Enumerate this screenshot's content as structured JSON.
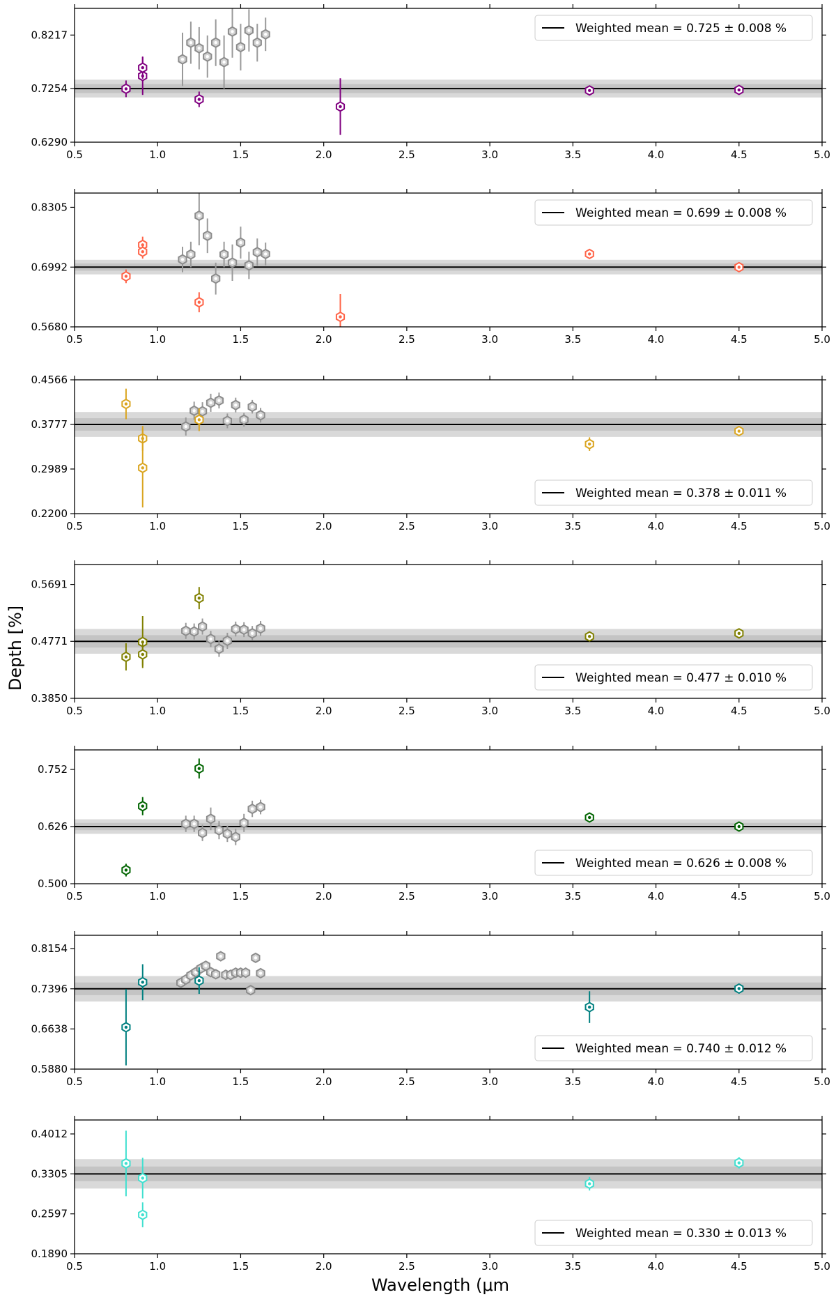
{
  "figure": {
    "ylabel": "Depth [%]",
    "xlabel": "Wavelength (μm"
  },
  "chart_data": [
    {
      "type": "scatter",
      "xlim": [
        0.5,
        5.0
      ],
      "xticks": [
        "0.5",
        "1.0",
        "1.5",
        "2.0",
        "2.5",
        "3.0",
        "3.5",
        "4.0",
        "4.5",
        "5.0"
      ],
      "ylim": [
        0.629,
        0.8697
      ],
      "yticks": [
        "0.6290",
        "0.7254",
        "0.8217"
      ],
      "mean": 0.7254,
      "band_inner": 0.008,
      "band_outer": 0.016,
      "legend": "Weighted mean = 0.725 ± 0.008 %",
      "legend_position": "top-right",
      "color": "#800080",
      "series": [
        {
          "x": [
            0.81,
            0.91,
            0.91,
            1.25,
            2.1,
            3.6,
            4.5
          ],
          "y": [
            0.725,
            0.748,
            0.763,
            0.706,
            0.693,
            0.722,
            0.723
          ],
          "err": [
            0.015,
            0.034,
            0.02,
            0.014,
            0.051,
            0.005,
            0.005
          ]
        },
        {
          "x": [
            1.15,
            1.2,
            1.25,
            1.3,
            1.35,
            1.4,
            1.45,
            1.5,
            1.55,
            1.6,
            1.65
          ],
          "y": [
            0.778,
            0.808,
            0.798,
            0.783,
            0.808,
            0.773,
            0.828,
            0.8,
            0.83,
            0.808,
            0.823
          ],
          "err": [
            0.048,
            0.038,
            0.038,
            0.038,
            0.042,
            0.048,
            0.047,
            0.042,
            0.038,
            0.034,
            0.03
          ]
        }
      ]
    },
    {
      "type": "scatter",
      "xlim": [
        0.5,
        5.0
      ],
      "xticks": [
        "0.5",
        "1.0",
        "1.5",
        "2.0",
        "2.5",
        "3.0",
        "3.5",
        "4.0",
        "4.5",
        "5.0"
      ],
      "ylim": [
        0.568,
        0.8618
      ],
      "yticks": [
        "0.5680",
        "0.6992",
        "0.8305"
      ],
      "mean": 0.6992,
      "band_inner": 0.008,
      "band_outer": 0.016,
      "legend": "Weighted mean = 0.699 ± 0.008 %",
      "legend_position": "top-right",
      "color": "#ff6347",
      "series": [
        {
          "x": [
            0.81,
            0.91,
            0.91,
            1.25,
            2.1,
            3.6,
            4.5
          ],
          "y": [
            0.679,
            0.748,
            0.733,
            0.622,
            0.59,
            0.728,
            0.699
          ],
          "err": [
            0.015,
            0.018,
            0.015,
            0.022,
            0.05,
            0.01,
            0.005
          ]
        },
        {
          "x": [
            1.15,
            1.2,
            1.25,
            1.3,
            1.35,
            1.4,
            1.45,
            1.5,
            1.55,
            1.6,
            1.65
          ],
          "y": [
            0.716,
            0.727,
            0.812,
            0.768,
            0.674,
            0.727,
            0.709,
            0.753,
            0.703,
            0.732,
            0.728
          ],
          "err": [
            0.028,
            0.028,
            0.065,
            0.038,
            0.035,
            0.028,
            0.04,
            0.035,
            0.03,
            0.03,
            0.025
          ]
        }
      ]
    },
    {
      "type": "scatter",
      "xlim": [
        0.5,
        5.0
      ],
      "xticks": [
        "0.5",
        "1.0",
        "1.5",
        "2.0",
        "2.5",
        "3.0",
        "3.5",
        "4.0",
        "4.5",
        "5.0"
      ],
      "ylim": [
        0.22,
        0.4566
      ],
      "yticks": [
        "0.2200",
        "0.2989",
        "0.3777",
        "0.4566"
      ],
      "mean": 0.3777,
      "band_inner": 0.011,
      "band_outer": 0.022,
      "legend": "Weighted mean = 0.378 ± 0.011 %",
      "legend_position": "bottom-right",
      "color": "#daa520",
      "series": [
        {
          "x": [
            0.81,
            0.91,
            0.91,
            1.25,
            3.6,
            4.5
          ],
          "y": [
            0.414,
            0.353,
            0.301,
            0.386,
            0.343,
            0.366
          ],
          "err": [
            0.027,
            0.022,
            0.07,
            0.02,
            0.012,
            0.005
          ]
        },
        {
          "x": [
            1.17,
            1.22,
            1.27,
            1.32,
            1.37,
            1.42,
            1.47,
            1.52,
            1.57,
            1.62
          ],
          "y": [
            0.374,
            0.402,
            0.401,
            0.416,
            0.42,
            0.384,
            0.412,
            0.386,
            0.409,
            0.394
          ],
          "err": [
            0.016,
            0.016,
            0.016,
            0.016,
            0.014,
            0.013,
            0.013,
            0.012,
            0.012,
            0.013
          ]
        }
      ]
    },
    {
      "type": "scatter",
      "xlim": [
        0.5,
        5.0
      ],
      "xticks": [
        "0.5",
        "1.0",
        "1.5",
        "2.0",
        "2.5",
        "3.0",
        "3.5",
        "4.0",
        "4.5",
        "5.0"
      ],
      "ylim": [
        0.385,
        0.6013
      ],
      "yticks": [
        "0.3850",
        "0.4771",
        "0.5691"
      ],
      "mean": 0.4771,
      "band_inner": 0.01,
      "band_outer": 0.02,
      "legend": "Weighted mean = 0.477 ± 0.010 %",
      "legend_position": "bottom-right",
      "color": "#808000",
      "series": [
        {
          "x": [
            0.81,
            0.91,
            0.91,
            1.25,
            3.6,
            4.5
          ],
          "y": [
            0.452,
            0.476,
            0.456,
            0.547,
            0.485,
            0.49
          ],
          "err": [
            0.022,
            0.042,
            0.018,
            0.018,
            0.006,
            0.005
          ]
        },
        {
          "x": [
            1.17,
            1.22,
            1.27,
            1.32,
            1.37,
            1.42,
            1.47,
            1.52,
            1.57,
            1.62
          ],
          "y": [
            0.494,
            0.493,
            0.501,
            0.481,
            0.465,
            0.478,
            0.497,
            0.496,
            0.49,
            0.498
          ],
          "err": [
            0.013,
            0.013,
            0.013,
            0.013,
            0.013,
            0.013,
            0.012,
            0.012,
            0.012,
            0.012
          ]
        }
      ]
    },
    {
      "type": "scatter",
      "xlim": [
        0.5,
        5.0
      ],
      "xticks": [
        "0.5",
        "1.0",
        "1.5",
        "2.0",
        "2.5",
        "3.0",
        "3.5",
        "4.0",
        "4.5",
        "5.0"
      ],
      "ylim": [
        0.5,
        0.795
      ],
      "yticks": [
        "0.500",
        "0.626",
        "0.752"
      ],
      "mean": 0.626,
      "band_inner": 0.008,
      "band_outer": 0.016,
      "legend": "Weighted mean = 0.626 ± 0.008 %",
      "legend_position": "bottom-right",
      "color": "#006400",
      "series": [
        {
          "x": [
            0.81,
            0.91,
            1.25,
            3.6,
            4.5
          ],
          "y": [
            0.53,
            0.671,
            0.754,
            0.646,
            0.626
          ],
          "err": [
            0.014,
            0.02,
            0.022,
            0.01,
            0.004
          ]
        },
        {
          "x": [
            1.17,
            1.22,
            1.27,
            1.32,
            1.37,
            1.42,
            1.47,
            1.52,
            1.57,
            1.62
          ],
          "y": [
            0.632,
            0.632,
            0.612,
            0.643,
            0.618,
            0.61,
            0.603,
            0.634,
            0.665,
            0.669
          ],
          "err": [
            0.018,
            0.018,
            0.018,
            0.025,
            0.02,
            0.018,
            0.018,
            0.02,
            0.018,
            0.016
          ]
        }
      ]
    },
    {
      "type": "scatter",
      "xlim": [
        0.5,
        5.0
      ],
      "xticks": [
        "0.5",
        "1.0",
        "1.5",
        "2.0",
        "2.5",
        "3.0",
        "3.5",
        "4.0",
        "4.5",
        "5.0"
      ],
      "ylim": [
        0.588,
        0.8406
      ],
      "yticks": [
        "0.5880",
        "0.6638",
        "0.7396",
        "0.8154"
      ],
      "mean": 0.7396,
      "band_inner": 0.012,
      "band_outer": 0.024,
      "legend": "Weighted mean = 0.740 ± 0.012 %",
      "legend_position": "bottom-right",
      "color": "#008080",
      "series": [
        {
          "x": [
            0.81,
            0.91,
            1.25,
            3.6,
            4.5
          ],
          "y": [
            0.667,
            0.752,
            0.755,
            0.705,
            0.74
          ],
          "err": [
            0.072,
            0.034,
            0.025,
            0.03,
            0.005
          ]
        },
        {
          "x": [
            1.14,
            1.17,
            1.2,
            1.23,
            1.26,
            1.29,
            1.32,
            1.35,
            1.38,
            1.41,
            1.44,
            1.47,
            1.5,
            1.53,
            1.56,
            1.59,
            1.62
          ],
          "y": [
            0.751,
            0.757,
            0.765,
            0.771,
            0.778,
            0.783,
            0.771,
            0.767,
            0.801,
            0.766,
            0.766,
            0.77,
            0.77,
            0.77,
            0.737,
            0.798,
            0.769
          ],
          "err": [
            0.005,
            0.005,
            0.005,
            0.005,
            0.005,
            0.005,
            0.005,
            0.005,
            0.005,
            0.005,
            0.005,
            0.005,
            0.005,
            0.005,
            0.005,
            0.005,
            0.005
          ]
        }
      ]
    },
    {
      "type": "scatter",
      "xlim": [
        0.5,
        5.0
      ],
      "xticks": [
        "0.5",
        "1.0",
        "1.5",
        "2.0",
        "2.5",
        "3.0",
        "3.5",
        "4.0",
        "4.5",
        "5.0"
      ],
      "ylim": [
        0.189,
        0.4259
      ],
      "yticks": [
        "0.1890",
        "0.2597",
        "0.3305",
        "0.4012"
      ],
      "mean": 0.3305,
      "band_inner": 0.013,
      "band_outer": 0.026,
      "legend": "Weighted mean = 0.330 ± 0.013 %",
      "legend_position": "bottom-right",
      "color": "#40e0d0",
      "series": [
        {
          "x": [
            0.81,
            0.91,
            0.91,
            3.6,
            4.5
          ],
          "y": [
            0.349,
            0.323,
            0.258,
            0.313,
            0.35
          ],
          "err": [
            0.058,
            0.036,
            0.022,
            0.012,
            0.01
          ]
        }
      ]
    }
  ]
}
